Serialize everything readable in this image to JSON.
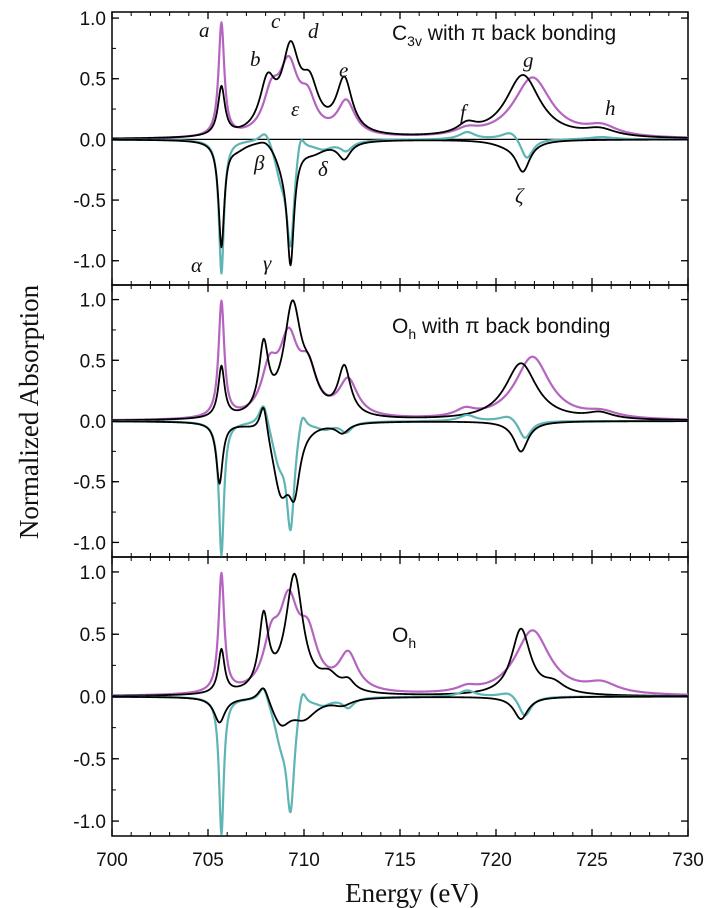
{
  "chart_data": {
    "type": "line",
    "xlabel": "Energy (eV)",
    "ylabel": "Normalized Absorption",
    "xlim": [
      700,
      730
    ],
    "x_ticks": [
      "700",
      "705",
      "710",
      "715",
      "720",
      "725",
      "730"
    ],
    "y_ticks": [
      "1.0",
      "0.5",
      "0.0",
      "-0.5",
      "-1.0"
    ],
    "colors": {
      "magenta": "#b565c0",
      "teal": "#5fb4b4",
      "black": "#000000"
    },
    "panels": [
      {
        "title_main": "C",
        "title_sub": "3v",
        "title_rest": " with π back bonding",
        "ylim": [
          -1.2,
          1.05
        ],
        "peak_labels": [
          "a",
          "b",
          "c",
          "d",
          "e",
          "f",
          "g",
          "h",
          "ε",
          "β",
          "δ",
          "ζ",
          "α",
          "γ"
        ],
        "series": [
          {
            "color": "magenta",
            "baseline": 0.0,
            "peaks": [
              [
                705.7,
                0.93,
                0.18
              ],
              [
                708.3,
                0.3,
                0.5
              ],
              [
                709.2,
                0.55,
                0.6
              ],
              [
                710.2,
                0.25,
                0.5
              ],
              [
                712.2,
                0.28,
                0.55
              ],
              [
                718.5,
                0.05,
                0.7
              ],
              [
                721.9,
                0.5,
                1.2
              ],
              [
                725.5,
                0.08,
                1.0
              ]
            ]
          },
          {
            "color": "black",
            "baseline": 0.0,
            "peaks": [
              [
                705.7,
                0.4,
                0.22
              ],
              [
                708.1,
                0.4,
                0.5
              ],
              [
                709.3,
                0.65,
                0.55
              ],
              [
                710.3,
                0.35,
                0.55
              ],
              [
                712.1,
                0.45,
                0.5
              ],
              [
                718.5,
                0.08,
                0.6
              ],
              [
                721.4,
                0.52,
                1.1
              ],
              [
                725.4,
                0.06,
                1.0
              ]
            ]
          },
          {
            "color": "teal",
            "baseline": 0.0,
            "peaks": [
              [
                705.7,
                -1.1,
                0.16
              ],
              [
                708.0,
                0.12,
                0.4
              ],
              [
                708.8,
                -0.25,
                0.4
              ],
              [
                709.3,
                -0.82,
                0.25
              ],
              [
                709.8,
                0.18,
                0.25
              ],
              [
                711.0,
                -0.06,
                0.6
              ],
              [
                712.2,
                -0.08,
                0.4
              ],
              [
                718.5,
                0.06,
                0.5
              ],
              [
                720.8,
                0.08,
                0.6
              ],
              [
                721.6,
                -0.18,
                0.4
              ],
              [
                725.5,
                0.02,
                0.8
              ]
            ]
          },
          {
            "color": "black",
            "baseline": 0.0,
            "peaks": [
              [
                705.7,
                -0.86,
                0.18
              ],
              [
                706.5,
                -0.06,
                0.6
              ],
              [
                708.0,
                0.05,
                0.5
              ],
              [
                708.9,
                -0.15,
                0.5
              ],
              [
                709.3,
                -0.92,
                0.22
              ],
              [
                710.5,
                -0.08,
                0.8
              ],
              [
                712.1,
                -0.14,
                0.4
              ],
              [
                721.4,
                -0.25,
                0.45
              ],
              [
                720.5,
                -0.03,
                0.9
              ]
            ]
          }
        ]
      },
      {
        "title_main": "O",
        "title_sub": "h",
        "title_rest": " with π back bonding",
        "ylim": [
          -1.12,
          1.12
        ],
        "series": [
          {
            "color": "magenta",
            "baseline": 0.0,
            "peaks": [
              [
                705.7,
                0.95,
                0.18
              ],
              [
                708.2,
                0.35,
                0.5
              ],
              [
                709.2,
                0.6,
                0.6
              ],
              [
                710.2,
                0.35,
                0.55
              ],
              [
                712.3,
                0.3,
                0.6
              ],
              [
                718.4,
                0.06,
                0.6
              ],
              [
                721.9,
                0.52,
                1.1
              ],
              [
                725.5,
                0.05,
                1.0
              ]
            ]
          },
          {
            "color": "black",
            "baseline": 0.0,
            "peaks": [
              [
                705.7,
                0.42,
                0.2
              ],
              [
                707.9,
                0.55,
                0.3
              ],
              [
                709.4,
                0.9,
                0.55
              ],
              [
                710.3,
                0.25,
                0.5
              ],
              [
                712.1,
                0.4,
                0.4
              ],
              [
                721.3,
                0.47,
                1.0
              ],
              [
                725.4,
                0.05,
                0.8
              ]
            ]
          },
          {
            "color": "teal",
            "baseline": 0.0,
            "peaks": [
              [
                705.7,
                -1.1,
                0.16
              ],
              [
                707.9,
                0.22,
                0.3
              ],
              [
                708.7,
                -0.3,
                0.45
              ],
              [
                709.3,
                -0.82,
                0.25
              ],
              [
                709.9,
                0.18,
                0.25
              ],
              [
                711.1,
                -0.05,
                0.5
              ],
              [
                712.2,
                -0.08,
                0.35
              ],
              [
                718.5,
                0.05,
                0.5
              ],
              [
                720.7,
                0.06,
                0.6
              ],
              [
                721.5,
                -0.16,
                0.4
              ]
            ]
          },
          {
            "color": "black",
            "baseline": 0.0,
            "peaks": [
              [
                705.6,
                -0.5,
                0.2
              ],
              [
                707.9,
                0.28,
                0.25
              ],
              [
                708.8,
                -0.55,
                0.55
              ],
              [
                709.5,
                -0.45,
                0.35
              ],
              [
                712.0,
                -0.08,
                0.4
              ],
              [
                721.3,
                -0.25,
                0.45
              ]
            ]
          }
        ]
      },
      {
        "title_main": "O",
        "title_sub": "h",
        "title_rest": "",
        "ylim": [
          -1.12,
          1.12
        ],
        "series": [
          {
            "color": "magenta",
            "baseline": 0.0,
            "peaks": [
              [
                705.7,
                0.95,
                0.18
              ],
              [
                708.3,
                0.35,
                0.5
              ],
              [
                709.2,
                0.65,
                0.6
              ],
              [
                710.2,
                0.4,
                0.6
              ],
              [
                712.3,
                0.3,
                0.6
              ],
              [
                718.5,
                0.04,
                0.6
              ],
              [
                721.9,
                0.52,
                1.1
              ],
              [
                725.5,
                0.08,
                1.0
              ]
            ]
          },
          {
            "color": "black",
            "baseline": 0.0,
            "peaks": [
              [
                705.7,
                0.35,
                0.2
              ],
              [
                707.9,
                0.58,
                0.3
              ],
              [
                709.5,
                0.95,
                0.55
              ],
              [
                711.3,
                0.12,
                0.6
              ],
              [
                712.3,
                0.08,
                0.4
              ],
              [
                721.3,
                0.53,
                0.6
              ],
              [
                723.0,
                0.08,
                0.7
              ]
            ]
          },
          {
            "color": "teal",
            "baseline": 0.0,
            "peaks": [
              [
                705.7,
                -1.1,
                0.15
              ],
              [
                707.9,
                0.15,
                0.3
              ],
              [
                708.8,
                -0.3,
                0.45
              ],
              [
                709.3,
                -0.82,
                0.25
              ],
              [
                709.9,
                0.18,
                0.25
              ],
              [
                711.0,
                -0.05,
                0.5
              ],
              [
                712.3,
                -0.08,
                0.35
              ],
              [
                718.5,
                0.05,
                0.5
              ],
              [
                720.7,
                0.05,
                0.6
              ],
              [
                721.5,
                -0.17,
                0.4
              ]
            ]
          },
          {
            "color": "black",
            "baseline": 0.0,
            "peaks": [
              [
                705.6,
                -0.2,
                0.35
              ],
              [
                707.9,
                0.15,
                0.35
              ],
              [
                708.8,
                -0.2,
                0.6
              ],
              [
                710.0,
                -0.15,
                0.8
              ],
              [
                712.0,
                -0.05,
                0.6
              ],
              [
                721.3,
                -0.18,
                0.45
              ]
            ]
          }
        ]
      }
    ]
  }
}
